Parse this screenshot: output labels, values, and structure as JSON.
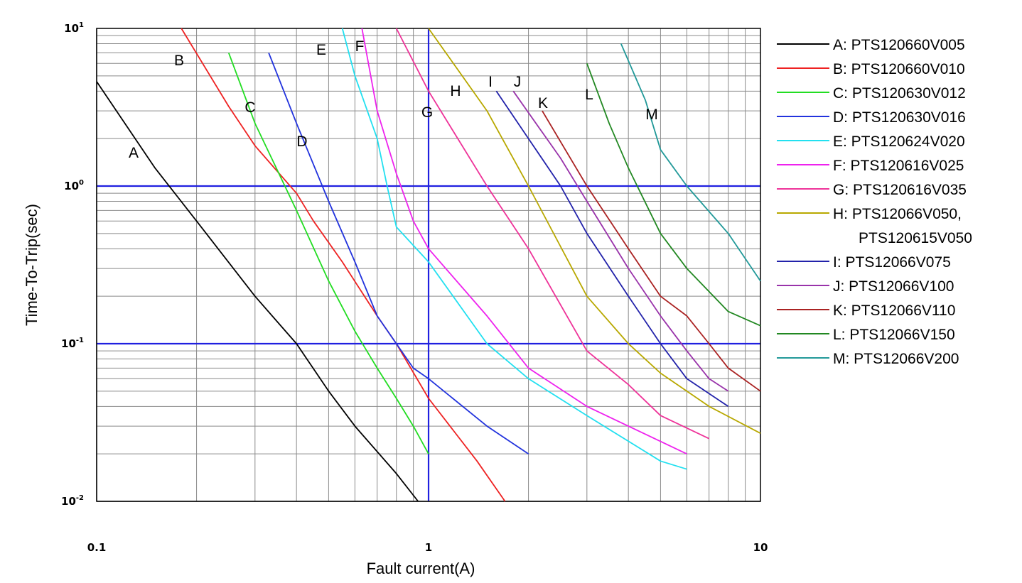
{
  "chart_data": {
    "type": "line",
    "title": "",
    "xlabel": "Fault current(A)",
    "ylabel": "Time-To-Trip(sec)",
    "xscale": "log",
    "yscale": "log",
    "xlim": [
      0.1,
      10
    ],
    "ylim": [
      0.01,
      10
    ],
    "grid": true,
    "legend_position": "right",
    "x_ticks": [
      {
        "value": 0.1,
        "label": "0.1"
      },
      {
        "value": 1,
        "label": "1"
      },
      {
        "value": 10,
        "label": "10"
      }
    ],
    "y_ticks": [
      {
        "value": 10,
        "base": "10",
        "exp": "1"
      },
      {
        "value": 1,
        "base": "10",
        "exp": "0"
      },
      {
        "value": 0.1,
        "base": "10",
        "exp": "-1"
      },
      {
        "value": 0.01,
        "base": "10",
        "exp": "-2"
      }
    ],
    "reference_lines": {
      "horizontal": [
        1,
        0.1
      ],
      "vertical": [
        1
      ],
      "color": "#2020e0"
    },
    "series": [
      {
        "tag": "A",
        "name": "A: PTS120660V005",
        "color": "#000000",
        "points": [
          [
            0.1,
            4.6
          ],
          [
            0.15,
            1.3
          ],
          [
            0.2,
            0.6
          ],
          [
            0.3,
            0.2
          ],
          [
            0.4,
            0.1
          ],
          [
            0.5,
            0.05
          ],
          [
            0.6,
            0.03
          ],
          [
            0.8,
            0.015
          ],
          [
            0.93,
            0.01
          ]
        ]
      },
      {
        "tag": "B",
        "name": "B: PTS120660V010",
        "color": "#ee2222",
        "points": [
          [
            0.18,
            10
          ],
          [
            0.25,
            3.2
          ],
          [
            0.3,
            1.8
          ],
          [
            0.4,
            0.9
          ],
          [
            0.45,
            0.6
          ],
          [
            0.55,
            0.33
          ],
          [
            0.7,
            0.15
          ],
          [
            0.8,
            0.1
          ],
          [
            1,
            0.045
          ],
          [
            1.4,
            0.018
          ],
          [
            1.7,
            0.01
          ]
        ]
      },
      {
        "tag": "C",
        "name": "C: PTS120630V012",
        "color": "#22dd22",
        "points": [
          [
            0.25,
            7
          ],
          [
            0.3,
            2.5
          ],
          [
            0.4,
            0.7
          ],
          [
            0.5,
            0.25
          ],
          [
            0.6,
            0.12
          ],
          [
            0.7,
            0.07
          ],
          [
            0.8,
            0.045
          ],
          [
            0.9,
            0.03
          ],
          [
            1,
            0.02
          ]
        ]
      },
      {
        "tag": "D",
        "name": "D: PTS120630V016",
        "color": "#2233dd",
        "points": [
          [
            0.33,
            7
          ],
          [
            0.4,
            2.5
          ],
          [
            0.5,
            0.8
          ],
          [
            0.6,
            0.33
          ],
          [
            0.7,
            0.15
          ],
          [
            0.8,
            0.1
          ],
          [
            0.9,
            0.07
          ],
          [
            1,
            0.06
          ],
          [
            1.5,
            0.03
          ],
          [
            2,
            0.02
          ]
        ]
      },
      {
        "tag": "E",
        "name": "E: PTS120624V020",
        "color": "#22e0f0",
        "points": [
          [
            0.55,
            10
          ],
          [
            0.6,
            5
          ],
          [
            0.7,
            2
          ],
          [
            0.75,
            1
          ],
          [
            0.8,
            0.55
          ],
          [
            1,
            0.33
          ],
          [
            1.5,
            0.1
          ],
          [
            2,
            0.06
          ],
          [
            3,
            0.035
          ],
          [
            5,
            0.018
          ],
          [
            6,
            0.016
          ]
        ]
      },
      {
        "tag": "F",
        "name": "F: PTS120616V025",
        "color": "#ee22ee",
        "points": [
          [
            0.63,
            10
          ],
          [
            0.7,
            3
          ],
          [
            0.8,
            1.2
          ],
          [
            0.9,
            0.6
          ],
          [
            1,
            0.4
          ],
          [
            1.5,
            0.15
          ],
          [
            2,
            0.07
          ],
          [
            3,
            0.04
          ],
          [
            6,
            0.02
          ]
        ]
      },
      {
        "tag": "G",
        "name": "G: PTS120616V035",
        "color": "#ee3399",
        "points": [
          [
            0.8,
            10
          ],
          [
            1,
            4
          ],
          [
            1.5,
            1
          ],
          [
            2,
            0.4
          ],
          [
            3,
            0.09
          ],
          [
            4,
            0.055
          ],
          [
            5,
            0.035
          ],
          [
            7,
            0.025
          ]
        ]
      },
      {
        "tag": "H",
        "name": "H: PTS12066V050, PTS120615V050",
        "color": "#b8a800",
        "points": [
          [
            1,
            10
          ],
          [
            1.5,
            3
          ],
          [
            2,
            1
          ],
          [
            3,
            0.2
          ],
          [
            4,
            0.1
          ],
          [
            5,
            0.065
          ],
          [
            7,
            0.04
          ],
          [
            10,
            0.027
          ]
        ]
      },
      {
        "tag": "I",
        "name": "I: PTS12066V075",
        "color": "#2222aa",
        "points": [
          [
            1.6,
            4
          ],
          [
            2,
            2
          ],
          [
            2.5,
            1
          ],
          [
            3,
            0.5
          ],
          [
            4,
            0.2
          ],
          [
            5,
            0.1
          ],
          [
            6,
            0.06
          ],
          [
            8,
            0.04
          ]
        ]
      },
      {
        "tag": "J",
        "name": "J: PTS12066V100",
        "color": "#9933aa",
        "points": [
          [
            1.8,
            4
          ],
          [
            2.5,
            1.5
          ],
          [
            3,
            0.8
          ],
          [
            4,
            0.3
          ],
          [
            5,
            0.15
          ],
          [
            6,
            0.09
          ],
          [
            7,
            0.06
          ],
          [
            8,
            0.05
          ]
        ]
      },
      {
        "tag": "K",
        "name": "K: PTS12066V110",
        "color": "#aa2222",
        "points": [
          [
            2.2,
            3
          ],
          [
            3,
            1
          ],
          [
            4,
            0.4
          ],
          [
            5,
            0.2
          ],
          [
            6,
            0.15
          ],
          [
            7,
            0.1
          ],
          [
            8,
            0.07
          ],
          [
            10,
            0.05
          ]
        ]
      },
      {
        "tag": "L",
        "name": "L: PTS12066V150",
        "color": "#228822",
        "points": [
          [
            3,
            6
          ],
          [
            3.5,
            2.5
          ],
          [
            4,
            1.3
          ],
          [
            5,
            0.5
          ],
          [
            6,
            0.3
          ],
          [
            8,
            0.16
          ],
          [
            10,
            0.13
          ]
        ]
      },
      {
        "tag": "M",
        "name": "M: PTS12066V200",
        "color": "#229999",
        "points": [
          [
            3.8,
            8
          ],
          [
            4.5,
            3.5
          ],
          [
            5,
            1.7
          ],
          [
            6,
            1
          ],
          [
            8,
            0.5
          ],
          [
            10,
            0.25
          ]
        ]
      }
    ]
  }
}
